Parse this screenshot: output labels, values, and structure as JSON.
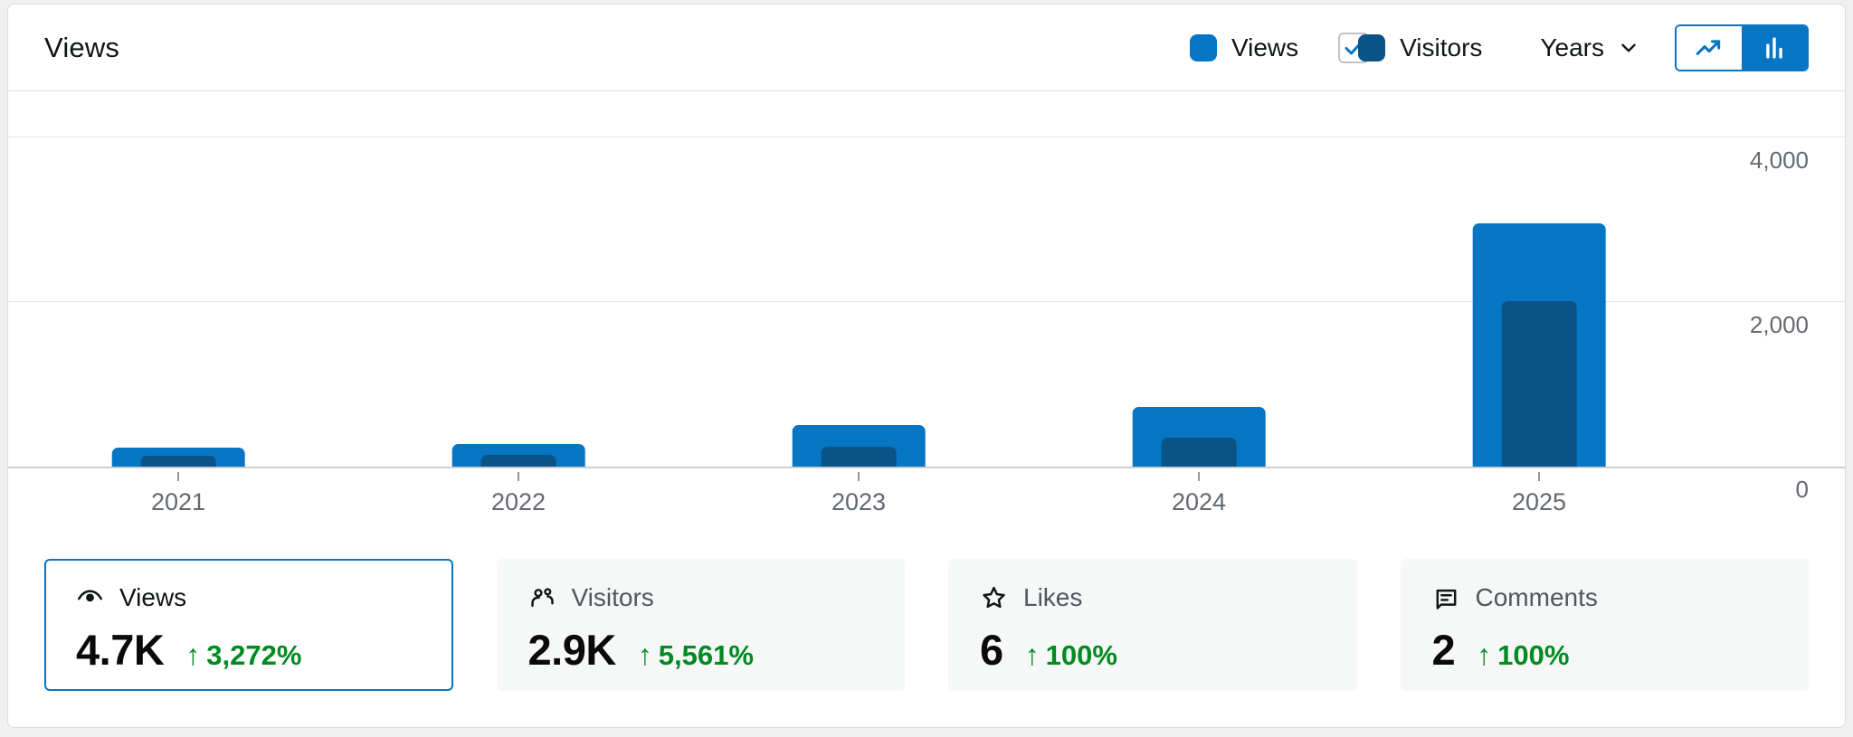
{
  "header": {
    "title": "Views"
  },
  "legend": {
    "views": {
      "label": "Views",
      "color": "#0675C4"
    },
    "visitors": {
      "label": "Visitors",
      "color": "#0A5387",
      "checked": true
    }
  },
  "interval_selector": {
    "label": "Years"
  },
  "chart_type_toggle": {
    "options": [
      "line-chart",
      "bar-chart"
    ],
    "selected": "bar-chart"
  },
  "chart_data": {
    "type": "bar",
    "categories": [
      "2021",
      "2022",
      "2023",
      "2024",
      "2025"
    ],
    "series": [
      {
        "name": "Views",
        "color": "#0675C4",
        "values": [
          230,
          270,
          500,
          730,
          2960
        ]
      },
      {
        "name": "Visitors",
        "color": "#0A5387",
        "values": [
          130,
          140,
          240,
          350,
          2010
        ]
      }
    ],
    "ylim": [
      0,
      4000
    ],
    "yticks": [
      {
        "value": 4000,
        "label": "4,000"
      },
      {
        "value": 2000,
        "label": "2,000"
      },
      {
        "value": 0,
        "label": "0"
      }
    ],
    "grid": "horizontal",
    "legend_position": "top-right",
    "bar_style": "nested"
  },
  "summary_cards": [
    {
      "id": "views",
      "icon": "eye-icon",
      "label": "Views",
      "value": "4.7K",
      "change": "3,272%",
      "trend": "up",
      "selected": true
    },
    {
      "id": "visitors",
      "icon": "people-icon",
      "label": "Visitors",
      "value": "2.9K",
      "change": "5,561%",
      "trend": "up",
      "selected": false
    },
    {
      "id": "likes",
      "icon": "star-icon",
      "label": "Likes",
      "value": "6",
      "change": "100%",
      "trend": "up",
      "selected": false
    },
    {
      "id": "comments",
      "icon": "comment-icon",
      "label": "Comments",
      "value": "2",
      "change": "100%",
      "trend": "up",
      "selected": false
    }
  ],
  "colors": {
    "accent_blue": "#0675C4",
    "navy": "#0A5387",
    "positive_green": "#008a20",
    "muted_text": "#646970",
    "grid_gray": "#e0e2e4"
  }
}
